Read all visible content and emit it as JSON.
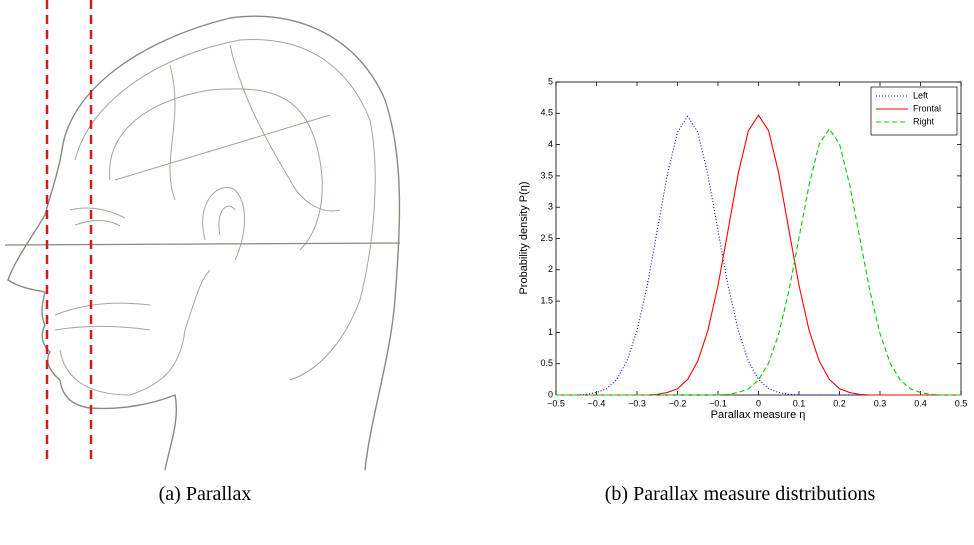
{
  "panel_a": {
    "caption": "(a) Parallax"
  },
  "panel_b": {
    "caption": "(b) Parallax measure distributions"
  },
  "chart_data": {
    "type": "line",
    "xlabel": "Parallax measure η",
    "ylabel": "Probability density P(η)",
    "x": [
      -0.5,
      -0.475,
      -0.45,
      -0.425,
      -0.4,
      -0.375,
      -0.35,
      -0.325,
      -0.3,
      -0.275,
      -0.25,
      -0.225,
      -0.2,
      -0.175,
      -0.15,
      -0.125,
      -0.1,
      -0.075,
      -0.05,
      -0.025,
      0,
      0.025,
      0.05,
      0.075,
      0.1,
      0.125,
      0.15,
      0.175,
      0.2,
      0.225,
      0.25,
      0.275,
      0.3,
      0.325,
      0.35,
      0.375,
      0.4,
      0.425,
      0.45,
      0.475,
      0.5
    ],
    "series": [
      {
        "name": "Left",
        "color": "#0000ff",
        "dash": "dotted",
        "values": [
          0,
          0,
          0,
          0.01,
          0.04,
          0.1,
          0.25,
          0.54,
          1.03,
          1.74,
          2.63,
          3.52,
          4.2,
          4.45,
          4.2,
          3.52,
          2.63,
          1.74,
          1.03,
          0.54,
          0.25,
          0.1,
          0.04,
          0.01,
          0,
          0,
          0,
          0,
          0,
          0,
          0,
          0,
          0,
          0,
          0,
          0,
          0,
          0,
          0,
          0,
          0
        ]
      },
      {
        "name": "Frontal",
        "color": "#ff0000",
        "dash": "solid",
        "values": [
          0,
          0,
          0,
          0,
          0,
          0,
          0,
          0,
          0,
          0,
          0.01,
          0.04,
          0.1,
          0.25,
          0.54,
          1.03,
          1.75,
          2.64,
          3.54,
          4.22,
          4.47,
          4.22,
          3.54,
          2.64,
          1.75,
          1.03,
          0.54,
          0.25,
          0.1,
          0.04,
          0.01,
          0,
          0,
          0,
          0,
          0,
          0,
          0,
          0,
          0,
          0
        ]
      },
      {
        "name": "Right",
        "color": "#00cc00",
        "dash": "dashed",
        "values": [
          0,
          0,
          0,
          0,
          0,
          0,
          0,
          0,
          0,
          0,
          0,
          0,
          0,
          0,
          0,
          0,
          0,
          0.01,
          0.04,
          0.1,
          0.24,
          0.51,
          0.98,
          1.66,
          2.51,
          3.36,
          4.01,
          4.25,
          4.01,
          3.36,
          2.51,
          1.66,
          0.98,
          0.51,
          0.24,
          0.1,
          0.04,
          0.01,
          0,
          0,
          0
        ]
      }
    ],
    "xlim": [
      -0.5,
      0.5
    ],
    "xticks": [
      {
        "value": -0.5,
        "label": "−0.5"
      },
      {
        "value": -0.4,
        "label": "−0.4"
      },
      {
        "value": -0.3,
        "label": "−0.3"
      },
      {
        "value": -0.2,
        "label": "−0.2"
      },
      {
        "value": -0.1,
        "label": "−0.1"
      },
      0,
      0.1,
      0.2,
      0.3,
      0.4,
      0.5
    ],
    "ylim": [
      0,
      5
    ],
    "yticks": [
      0,
      0.5,
      1,
      1.5,
      2,
      2.5,
      3,
      3.5,
      4,
      4.5,
      5
    ],
    "grid": false,
    "legend": "upper-right"
  }
}
